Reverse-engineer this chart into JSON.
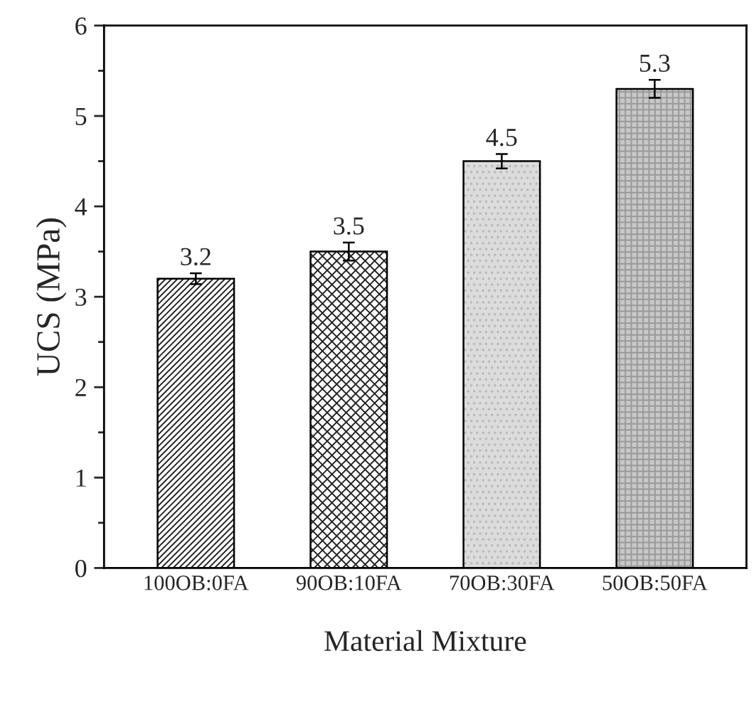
{
  "chart_data": {
    "type": "bar",
    "xlabel": "Material Mixture",
    "ylabel": "UCS (MPa)",
    "categories": [
      "100OB:0FA",
      "90OB:10FA",
      "70OB:30FA",
      "50OB:50FA"
    ],
    "values": [
      3.2,
      3.5,
      4.5,
      5.3
    ],
    "colors": [
      "#ffffff",
      "#ffffff",
      "#dcdcdc",
      "#c8c8c8"
    ],
    "errors": [
      0.06,
      0.1,
      0.08,
      0.1
    ],
    "data_labels": true,
    "ylim": [
      0,
      6
    ],
    "yticks": [
      0,
      1,
      2,
      3,
      4,
      5,
      6
    ],
    "grid": false,
    "legend": false
  }
}
